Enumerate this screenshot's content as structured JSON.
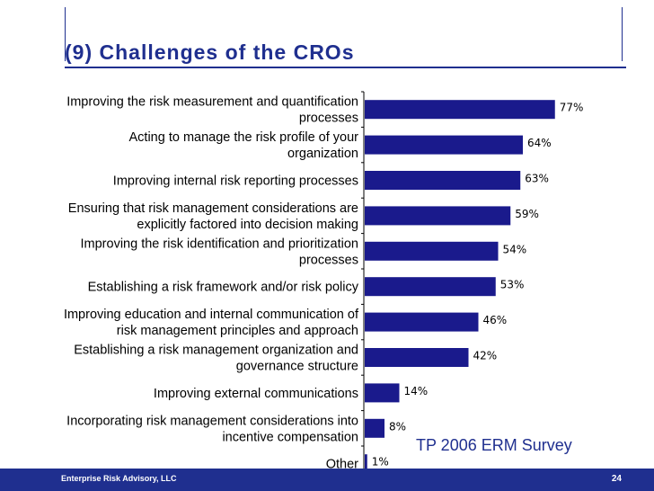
{
  "slide": {
    "title": "(9) Challenges of the CROs",
    "source_note": "TP 2006 ERM Survey",
    "footer_text": "Enterprise Risk Advisory, LLC",
    "page_number": "24"
  },
  "colors": {
    "bar": "#1a1a8c",
    "accent": "#1f2f8f"
  },
  "chart_data": {
    "type": "bar",
    "orientation": "horizontal",
    "title": "",
    "xlabel": "",
    "ylabel": "",
    "xlim": [
      0,
      100
    ],
    "grid": false,
    "categories": [
      [
        "Improving the risk measurement and quantification",
        "processes"
      ],
      [
        "Acting to manage the risk profile of your",
        "organization"
      ],
      [
        "Improving internal risk reporting processes"
      ],
      [
        "Ensuring that risk management considerations are",
        "explicitly factored into decision making"
      ],
      [
        "Improving the risk identification and prioritization",
        "processes"
      ],
      [
        "Establishing a risk framework and/or risk policy"
      ],
      [
        "Improving education and internal communication of",
        "risk management principles and approach"
      ],
      [
        "Establishing a risk management organization and",
        "governance structure"
      ],
      [
        "Improving external communications"
      ],
      [
        "Incorporating risk management considerations into",
        "incentive compensation"
      ],
      [
        "Other"
      ]
    ],
    "values": [
      77,
      64,
      63,
      59,
      54,
      53,
      46,
      42,
      14,
      8,
      1
    ],
    "value_labels": [
      "77%",
      "64%",
      "63%",
      "59%",
      "54%",
      "53%",
      "46%",
      "42%",
      "14%",
      "8%",
      "1%"
    ]
  }
}
